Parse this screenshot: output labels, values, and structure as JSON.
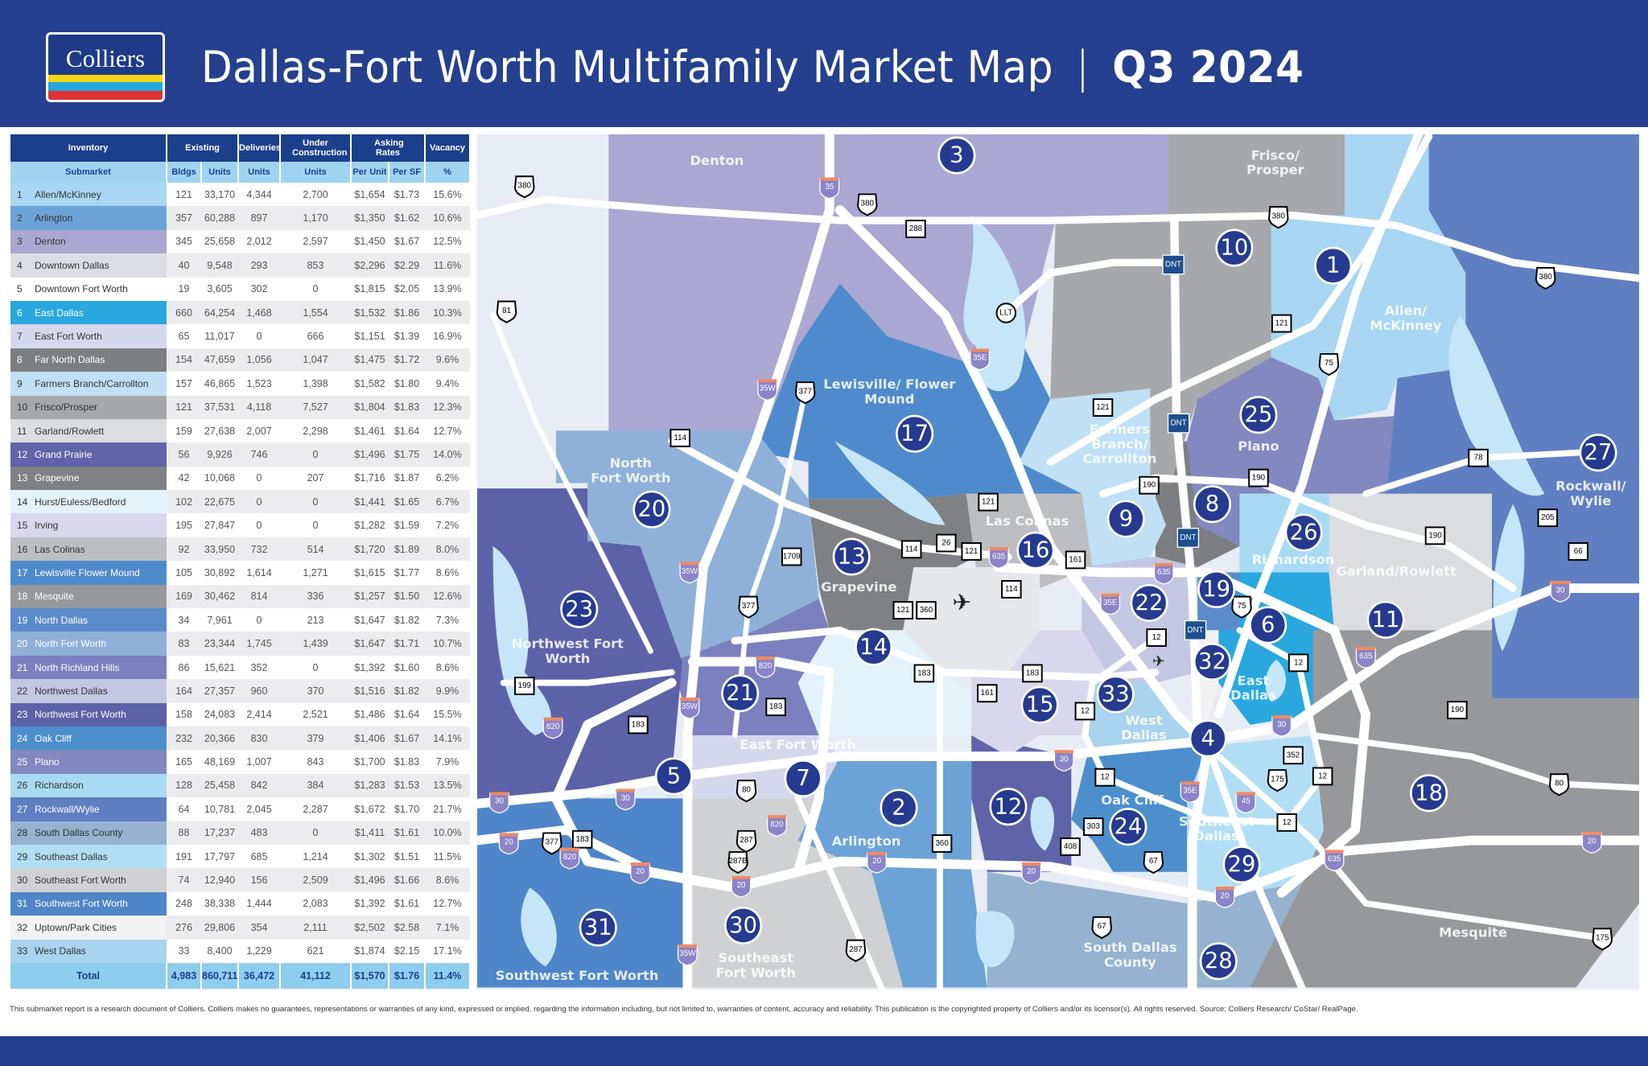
{
  "header": {
    "logo_text": "Colliers",
    "title": "Dallas-Fort Worth Multifamily Market Map",
    "separator": "|",
    "period": "Q3 2024",
    "background_color": "#24408e"
  },
  "table": {
    "group_headers": [
      "Inventory",
      "Existing",
      "Deliveries",
      "Under Construction",
      "Asking Rates",
      "Vacancy"
    ],
    "sub_headers": [
      "Submarket",
      "Bldgs",
      "Units",
      "Units",
      "Units",
      "Per Unit",
      "Per SF",
      "%"
    ],
    "rows": [
      {
        "num": "1",
        "name": "Allen/McKinney",
        "color": "#a9d6f2",
        "light": false,
        "bldgs": "121",
        "units": "33,170",
        "deliveries": "4,344",
        "under_construction": "2,700",
        "per_unit": "$1,654",
        "per_sf": "$1.73",
        "vacancy": "15.6%"
      },
      {
        "num": "2",
        "name": "Arlington",
        "color": "#6ca3d6",
        "light": false,
        "bldgs": "357",
        "units": "60,288",
        "deliveries": "897",
        "under_construction": "1,170",
        "per_unit": "$1,350",
        "per_sf": "$1.62",
        "vacancy": "10.6%"
      },
      {
        "num": "3",
        "name": "Denton",
        "color": "#aaa8d3",
        "light": false,
        "bldgs": "345",
        "units": "25,658",
        "deliveries": "2,012",
        "under_construction": "2,597",
        "per_unit": "$1,450",
        "per_sf": "$1.67",
        "vacancy": "12.5%"
      },
      {
        "num": "4",
        "name": "Downtown Dallas",
        "color": "#dcdde2",
        "light": false,
        "bldgs": "40",
        "units": "9,548",
        "deliveries": "293",
        "under_construction": "853",
        "per_unit": "$2,296",
        "per_sf": "$2.29",
        "vacancy": "11.6%"
      },
      {
        "num": "5",
        "name": "Downtown Fort Worth",
        "color": "#ffffff",
        "light": false,
        "bldgs": "19",
        "units": "3,605",
        "deliveries": "302",
        "under_construction": "0",
        "per_unit": "$1,815",
        "per_sf": "$2.05",
        "vacancy": "13.9%"
      },
      {
        "num": "6",
        "name": "East Dallas",
        "color": "#29a8df",
        "light": true,
        "bldgs": "660",
        "units": "64,254",
        "deliveries": "1,468",
        "under_construction": "1,554",
        "per_unit": "$1,532",
        "per_sf": "$1.86",
        "vacancy": "10.3%"
      },
      {
        "num": "7",
        "name": "East Fort Worth",
        "color": "#d5d8ec",
        "light": false,
        "bldgs": "65",
        "units": "11,017",
        "deliveries": "0",
        "under_construction": "666",
        "per_unit": "$1,151",
        "per_sf": "$1.39",
        "vacancy": "16.9%"
      },
      {
        "num": "8",
        "name": "Far North Dallas",
        "color": "#7d7e82",
        "light": true,
        "bldgs": "154",
        "units": "47,659",
        "deliveries": "1,056",
        "under_construction": "1,047",
        "per_unit": "$1,475",
        "per_sf": "$1.72",
        "vacancy": "9.6%"
      },
      {
        "num": "9",
        "name": "Farmers Branch/Carrollton",
        "color": "#bfe0f5",
        "light": false,
        "bldgs": "157",
        "units": "46,865",
        "deliveries": "1,523",
        "under_construction": "1,398",
        "per_unit": "$1,582",
        "per_sf": "$1.80",
        "vacancy": "9.4%"
      },
      {
        "num": "10",
        "name": "Frisco/Prosper",
        "color": "#a7a8ab",
        "light": false,
        "bldgs": "121",
        "units": "37,531",
        "deliveries": "4,118",
        "under_construction": "7,527",
        "per_unit": "$1,804",
        "per_sf": "$1.83",
        "vacancy": "12.3%"
      },
      {
        "num": "11",
        "name": "Garland/Rowlett",
        "color": "#dcdde0",
        "light": false,
        "bldgs": "159",
        "units": "27,638",
        "deliveries": "2,007",
        "under_construction": "2,298",
        "per_unit": "$1,461",
        "per_sf": "$1.64",
        "vacancy": "12.7%"
      },
      {
        "num": "12",
        "name": "Grand Prairie",
        "color": "#5f64a8",
        "light": true,
        "bldgs": "56",
        "units": "9,926",
        "deliveries": "746",
        "under_construction": "0",
        "per_unit": "$1,496",
        "per_sf": "$1.75",
        "vacancy": "14.0%"
      },
      {
        "num": "13",
        "name": "Grapevine",
        "color": "#808184",
        "light": true,
        "bldgs": "42",
        "units": "10,068",
        "deliveries": "0",
        "under_construction": "207",
        "per_unit": "$1,716",
        "per_sf": "$1.87",
        "vacancy": "6.2%"
      },
      {
        "num": "14",
        "name": "Hurst/Euless/Bedford",
        "color": "#e3f3fb",
        "light": false,
        "bldgs": "102",
        "units": "22,675",
        "deliveries": "0",
        "under_construction": "0",
        "per_unit": "$1,441",
        "per_sf": "$1.65",
        "vacancy": "6.7%"
      },
      {
        "num": "15",
        "name": "Irving",
        "color": "#d8d7ec",
        "light": false,
        "bldgs": "195",
        "units": "27,847",
        "deliveries": "0",
        "under_construction": "0",
        "per_unit": "$1,282",
        "per_sf": "$1.59",
        "vacancy": "7.2%"
      },
      {
        "num": "16",
        "name": "Las Colinas",
        "color": "#bdbec1",
        "light": false,
        "bldgs": "92",
        "units": "33,950",
        "deliveries": "732",
        "under_construction": "514",
        "per_unit": "$1,720",
        "per_sf": "$1.89",
        "vacancy": "8.0%"
      },
      {
        "num": "17",
        "name": "Lewisville Flower Mound",
        "color": "#4f8bcc",
        "light": true,
        "bldgs": "105",
        "units": "30,892",
        "deliveries": "1,614",
        "under_construction": "1,271",
        "per_unit": "$1,615",
        "per_sf": "$1.77",
        "vacancy": "8.6%"
      },
      {
        "num": "18",
        "name": "Mesquite",
        "color": "#97989b",
        "light": true,
        "bldgs": "169",
        "units": "30,462",
        "deliveries": "814",
        "under_construction": "336",
        "per_unit": "$1,257",
        "per_sf": "$1.50",
        "vacancy": "12.6%"
      },
      {
        "num": "19",
        "name": "North Dallas",
        "color": "#5b8bcb",
        "light": true,
        "bldgs": "34",
        "units": "7,961",
        "deliveries": "0",
        "under_construction": "213",
        "per_unit": "$1,647",
        "per_sf": "$1.82",
        "vacancy": "7.3%"
      },
      {
        "num": "20",
        "name": "North Fort Worth",
        "color": "#8fb1d9",
        "light": true,
        "bldgs": "83",
        "units": "23,344",
        "deliveries": "1,745",
        "under_construction": "1,439",
        "per_unit": "$1,647",
        "per_sf": "$1.71",
        "vacancy": "10.7%"
      },
      {
        "num": "21",
        "name": "North Richland Hills",
        "color": "#7b81bf",
        "light": true,
        "bldgs": "86",
        "units": "15,621",
        "deliveries": "352",
        "under_construction": "0",
        "per_unit": "$1,392",
        "per_sf": "$1.60",
        "vacancy": "8.6%"
      },
      {
        "num": "22",
        "name": "Northwest Dallas",
        "color": "#c3c7e2",
        "light": false,
        "bldgs": "164",
        "units": "27,357",
        "deliveries": "960",
        "under_construction": "370",
        "per_unit": "$1,516",
        "per_sf": "$1.82",
        "vacancy": "9.9%"
      },
      {
        "num": "23",
        "name": "Northwest Fort Worth",
        "color": "#5c62a8",
        "light": true,
        "bldgs": "158",
        "units": "24,083",
        "deliveries": "2,414",
        "under_construction": "2,521",
        "per_unit": "$1,486",
        "per_sf": "$1.64",
        "vacancy": "15.5%"
      },
      {
        "num": "24",
        "name": "Oak Cliff",
        "color": "#4c8fcc",
        "light": true,
        "bldgs": "232",
        "units": "20,366",
        "deliveries": "830",
        "under_construction": "379",
        "per_unit": "$1,406",
        "per_sf": "$1.67",
        "vacancy": "14.1%"
      },
      {
        "num": "25",
        "name": "Plano",
        "color": "#8288c0",
        "light": true,
        "bldgs": "165",
        "units": "48,169",
        "deliveries": "1,007",
        "under_construction": "843",
        "per_unit": "$1,700",
        "per_sf": "$1.83",
        "vacancy": "7.9%"
      },
      {
        "num": "26",
        "name": "Richardson",
        "color": "#a8dbf3",
        "light": false,
        "bldgs": "128",
        "units": "25,458",
        "deliveries": "842",
        "under_construction": "384",
        "per_unit": "$1,283",
        "per_sf": "$1.53",
        "vacancy": "13.5%"
      },
      {
        "num": "27",
        "name": "Rockwall/Wylie",
        "color": "#5f7fc2",
        "light": true,
        "bldgs": "64",
        "units": "10,781",
        "deliveries": "2,045",
        "under_construction": "2,287",
        "per_unit": "$1,672",
        "per_sf": "$1.70",
        "vacancy": "21.7%"
      },
      {
        "num": "28",
        "name": "South Dallas County",
        "color": "#95b2d0",
        "light": false,
        "bldgs": "88",
        "units": "17,237",
        "deliveries": "483",
        "under_construction": "0",
        "per_unit": "$1,411",
        "per_sf": "$1.61",
        "vacancy": "10.0%"
      },
      {
        "num": "29",
        "name": "Southeast Dallas",
        "color": "#b2def5",
        "light": false,
        "bldgs": "191",
        "units": "17,797",
        "deliveries": "685",
        "under_construction": "1,214",
        "per_unit": "$1,302",
        "per_sf": "$1.51",
        "vacancy": "11.5%"
      },
      {
        "num": "30",
        "name": "Southeast Fort Worth",
        "color": "#d0d1d3",
        "light": false,
        "bldgs": "74",
        "units": "12,940",
        "deliveries": "156",
        "under_construction": "2,509",
        "per_unit": "$1,496",
        "per_sf": "$1.66",
        "vacancy": "8.6%"
      },
      {
        "num": "31",
        "name": "Southwest Fort Worth",
        "color": "#4f86c9",
        "light": true,
        "bldgs": "248",
        "units": "38,338",
        "deliveries": "1,444",
        "under_construction": "2,083",
        "per_unit": "$1,392",
        "per_sf": "$1.61",
        "vacancy": "12.7%"
      },
      {
        "num": "32",
        "name": "Uptown/Park Cities",
        "color": "#f2f2f4",
        "light": false,
        "bldgs": "276",
        "units": "29,806",
        "deliveries": "354",
        "under_construction": "2,111",
        "per_unit": "$2,502",
        "per_sf": "$2.58",
        "vacancy": "7.1%"
      },
      {
        "num": "33",
        "name": "West Dallas",
        "color": "#a9d3ef",
        "light": false,
        "bldgs": "33",
        "units": "8,400",
        "deliveries": "1,229",
        "under_construction": "621",
        "per_unit": "$1,874",
        "per_sf": "$2.15",
        "vacancy": "17.1%"
      }
    ],
    "total": {
      "label": "Total",
      "bldgs": "4,983",
      "units": "860,711",
      "deliveries": "36,472",
      "under_construction": "41,112",
      "per_unit": "$1,570",
      "per_sf": "$1.76",
      "vacancy": "11.4%"
    }
  },
  "map": {
    "marker_color": "#263a8f",
    "area_labels": [
      [
        "Denton"
      ],
      [
        "Frisco/",
        "Prosper"
      ],
      [
        "Allen/",
        "McKinney"
      ],
      [
        "Lewisville/ Flower",
        "Mound"
      ],
      [
        "North",
        "Fort Worth"
      ],
      [
        "Farmers",
        "Branch/",
        "Carrollton"
      ],
      [
        "Plano"
      ],
      [
        "Rockwall/",
        "Wylie"
      ],
      [
        "Las Colinas"
      ],
      [
        "Richardson"
      ],
      [
        "Garland/Rowlett"
      ],
      [
        "Grapevine"
      ],
      [
        "Northwest Fort",
        "Worth"
      ],
      [
        "East",
        "Dallas"
      ],
      [
        "West",
        "Dallas"
      ],
      [
        "East Fort Worth"
      ],
      [
        "Oak Cliff"
      ],
      [
        "Southeast",
        "Dallas"
      ],
      [
        "Arlington"
      ],
      [
        "Mesquite"
      ],
      [
        "South Dallas",
        "County"
      ],
      [
        "Southeast",
        "Fort Worth"
      ],
      [
        "Southwest Fort Worth"
      ]
    ],
    "shields": [
      {
        "label": "380",
        "type": "us"
      },
      {
        "label": "81",
        "type": "us"
      },
      {
        "label": "35",
        "type": "interstate"
      },
      {
        "label": "380",
        "type": "us"
      },
      {
        "label": "288",
        "type": "state"
      },
      {
        "label": "LLT",
        "type": "loop"
      },
      {
        "label": "35E",
        "type": "interstate"
      },
      {
        "label": "35W",
        "type": "interstate"
      },
      {
        "label": "377",
        "type": "us"
      },
      {
        "label": "114",
        "type": "state"
      },
      {
        "label": "121",
        "type": "state"
      },
      {
        "label": "DNT",
        "type": "toll"
      },
      {
        "label": "380",
        "type": "us"
      },
      {
        "label": "121",
        "type": "state"
      },
      {
        "label": "75",
        "type": "us"
      },
      {
        "label": "380",
        "type": "us"
      },
      {
        "label": "DNT",
        "type": "toll"
      },
      {
        "label": "190",
        "type": "state"
      },
      {
        "label": "190",
        "type": "state"
      },
      {
        "label": "78",
        "type": "state"
      },
      {
        "label": "205",
        "type": "state"
      },
      {
        "label": "66",
        "type": "state"
      },
      {
        "label": "190",
        "type": "state"
      },
      {
        "label": "121",
        "type": "state"
      },
      {
        "label": "26",
        "type": "state"
      },
      {
        "label": "114",
        "type": "state"
      },
      {
        "label": "121",
        "type": "state"
      },
      {
        "label": "635",
        "type": "interstate"
      },
      {
        "label": "161",
        "type": "state"
      },
      {
        "label": "DNT",
        "type": "toll"
      },
      {
        "label": "635",
        "type": "interstate"
      },
      {
        "label": "1709",
        "type": "state"
      },
      {
        "label": "35W",
        "type": "interstate"
      },
      {
        "label": "377",
        "type": "us"
      },
      {
        "label": "121",
        "type": "state"
      },
      {
        "label": "360",
        "type": "state"
      },
      {
        "label": "114",
        "type": "state"
      },
      {
        "label": "35E",
        "type": "interstate"
      },
      {
        "label": "12",
        "type": "state"
      },
      {
        "label": "DNT",
        "type": "toll"
      },
      {
        "label": "75",
        "type": "us"
      },
      {
        "label": "30",
        "type": "interstate"
      },
      {
        "label": "635",
        "type": "interstate"
      },
      {
        "label": "12",
        "type": "state"
      },
      {
        "label": "183",
        "type": "state"
      },
      {
        "label": "183",
        "type": "state"
      },
      {
        "label": "161",
        "type": "state"
      },
      {
        "label": "12",
        "type": "state"
      },
      {
        "label": "820",
        "type": "interstate"
      },
      {
        "label": "199",
        "type": "state"
      },
      {
        "label": "820",
        "type": "interstate"
      },
      {
        "label": "183",
        "type": "state"
      },
      {
        "label": "183",
        "type": "state"
      },
      {
        "label": "35W",
        "type": "interstate"
      },
      {
        "label": "30",
        "type": "interstate"
      },
      {
        "label": "190",
        "type": "state"
      },
      {
        "label": "352",
        "type": "state"
      },
      {
        "label": "175",
        "type": "us"
      },
      {
        "label": "12",
        "type": "state"
      },
      {
        "label": "30",
        "type": "interstate"
      },
      {
        "label": "12",
        "type": "state"
      },
      {
        "label": "80",
        "type": "us"
      },
      {
        "label": "35E",
        "type": "interstate"
      },
      {
        "label": "45",
        "type": "interstate"
      },
      {
        "label": "30",
        "type": "interstate"
      },
      {
        "label": "30",
        "type": "interstate"
      },
      {
        "label": "80",
        "type": "us"
      },
      {
        "label": "820",
        "type": "interstate"
      },
      {
        "label": "287",
        "type": "us"
      },
      {
        "label": "287B",
        "type": "us"
      },
      {
        "label": "12",
        "type": "state"
      },
      {
        "label": "303",
        "type": "state"
      },
      {
        "label": "408",
        "type": "state"
      },
      {
        "label": "67",
        "type": "us"
      },
      {
        "label": "360",
        "type": "state"
      },
      {
        "label": "20",
        "type": "interstate"
      },
      {
        "label": "377",
        "type": "us"
      },
      {
        "label": "183",
        "type": "state"
      },
      {
        "label": "820",
        "type": "interstate"
      },
      {
        "label": "20",
        "type": "interstate"
      },
      {
        "label": "20",
        "type": "interstate"
      },
      {
        "label": "20",
        "type": "interstate"
      },
      {
        "label": "20",
        "type": "interstate"
      },
      {
        "label": "20",
        "type": "interstate"
      },
      {
        "label": "635",
        "type": "interstate"
      },
      {
        "label": "20",
        "type": "interstate"
      },
      {
        "label": "67",
        "type": "us"
      },
      {
        "label": "287",
        "type": "us"
      },
      {
        "label": "35W",
        "type": "interstate"
      },
      {
        "label": "175",
        "type": "us"
      }
    ],
    "airport_icons": [
      "airplane-icon",
      "airplane-icon"
    ]
  },
  "footnote": "This submarket report is a research document of Colliers. Colliers makes no guarantees, representations or warranties of any kind, expressed or implied, regarding the information including, but not limited to, warranties of content, accuracy and reliability. This publication is the copyrighted property of Colliers and/or its licensor(s). All rights reserved. Source: Colliers Research/ CoStar/ RealPage."
}
